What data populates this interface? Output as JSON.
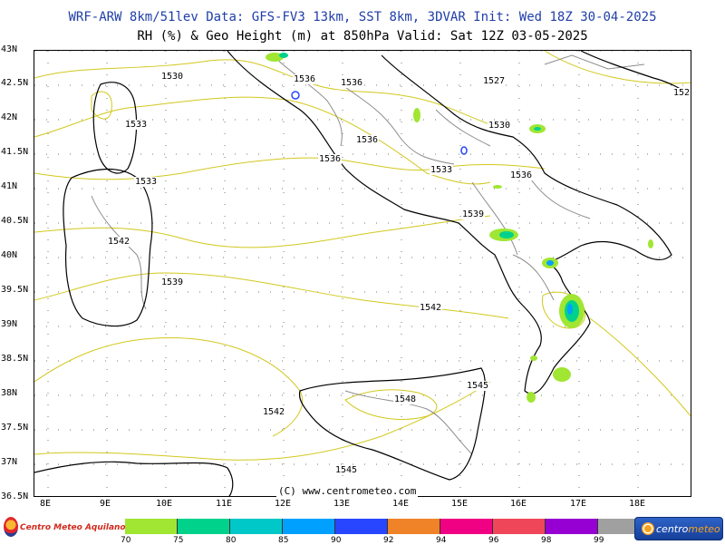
{
  "header": {
    "title1": "WRF-ARW 8km/51lev  Data: GFS-FV3 13km, SST 8km, 3DVAR  Init: Wed 18Z 30-04-2025",
    "title2": "RH (%) & Geo Height (m) at 850hPa  Valid: Sat 12Z 03-05-2025"
  },
  "axes": {
    "longitudes": [
      "8E",
      "9E",
      "10E",
      "11E",
      "12E",
      "13E",
      "14E",
      "15E",
      "16E",
      "17E",
      "18E"
    ],
    "latitudes": [
      "43N",
      "42.5N",
      "42N",
      "41.5N",
      "41N",
      "40.5N",
      "40N",
      "39.5N",
      "39N",
      "38.5N",
      "38N",
      "37.5N",
      "37N",
      "36.5N"
    ]
  },
  "contour_labels": [
    "1530",
    "1533",
    "1536",
    "1527",
    "1530",
    "1533",
    "1536",
    "1536",
    "1536",
    "1533",
    "1536",
    "1539",
    "1542",
    "1539",
    "1542",
    "1545",
    "1548",
    "1542",
    "1545",
    "152"
  ],
  "copyright": "(C) www.centrometeo.com",
  "legend": {
    "ticks": [
      "70",
      "75",
      "80",
      "85",
      "90",
      "92",
      "94",
      "96",
      "98",
      "99"
    ],
    "colors": [
      "#a0e632",
      "#00d28c",
      "#00c8c8",
      "#00a0ff",
      "#2846ff",
      "#f08228",
      "#f00082",
      "#f0465a",
      "#9600d2",
      "#a0a0a0"
    ]
  },
  "logos": {
    "left": "Centro Meteo Aquilano",
    "right_prefix": "centro",
    "right_suffix": "meteo"
  },
  "colors": {
    "contour_line": "#d2c81e",
    "coastline": "#000000",
    "borders": "#8c8c8c",
    "header_blue": "#1f3ea8"
  }
}
